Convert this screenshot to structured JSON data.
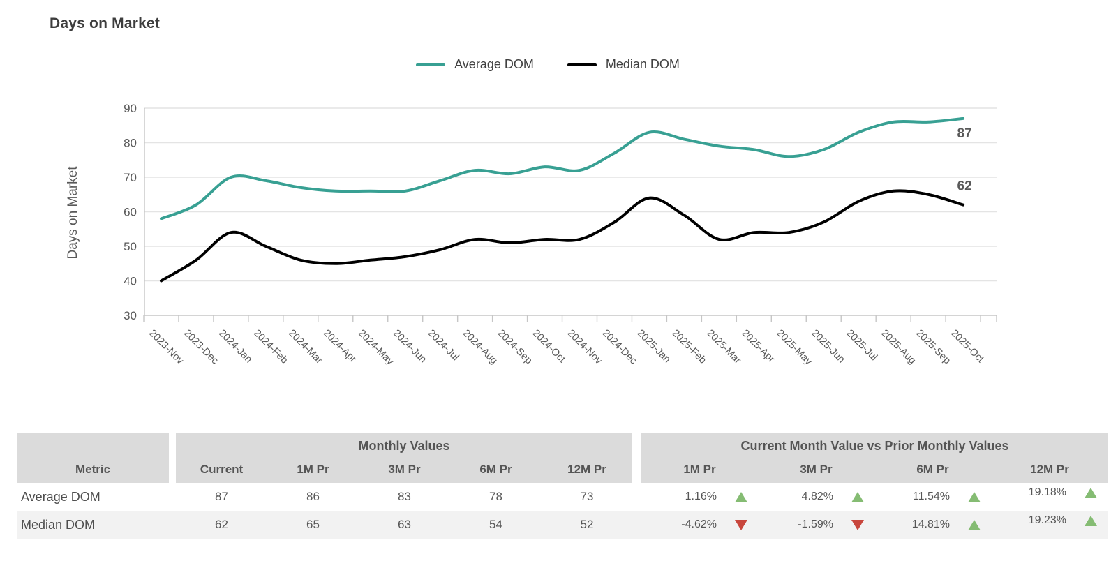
{
  "title": "Days on Market",
  "colors": {
    "average_line": "#38a093",
    "median_line": "#000000",
    "positive": "#85bc73",
    "negative": "#c8463c"
  },
  "legend": [
    {
      "label": "Average DOM",
      "color": "#38a093"
    },
    {
      "label": "Median DOM",
      "color": "#000000"
    }
  ],
  "chart_data": {
    "type": "line",
    "title": "Days on Market",
    "xlabel": "",
    "ylabel": "Days on Market",
    "ylim": [
      30,
      90
    ],
    "ytick_step": 10,
    "grid": true,
    "legend_position": "top",
    "x": [
      "2023-Nov",
      "2023-Dec",
      "2024-Jan",
      "2024-Feb",
      "2024-Mar",
      "2024-Apr",
      "2024-May",
      "2024-Jun",
      "2024-Jul",
      "2024-Aug",
      "2024-Sep",
      "2024-Oct",
      "2024-Nov",
      "2024-Dec",
      "2025-Jan",
      "2025-Feb",
      "2025-Mar",
      "2025-Apr",
      "2025-May",
      "2025-Jun",
      "2025-Jul",
      "2025-Aug",
      "2025-Sep",
      "2025-Oct"
    ],
    "series": [
      {
        "name": "Average DOM",
        "color": "#38a093",
        "values": [
          58,
          62,
          70,
          69,
          67,
          66,
          66,
          66,
          69,
          72,
          71,
          73,
          72,
          77,
          83,
          81,
          79,
          78,
          76,
          78,
          83,
          86,
          86,
          87
        ],
        "end_label": "87"
      },
      {
        "name": "Median DOM",
        "color": "#000000",
        "values": [
          40,
          46,
          54,
          50,
          46,
          45,
          46,
          47,
          49,
          52,
          51,
          52,
          52,
          57,
          64,
          59,
          52,
          54,
          54,
          57,
          63,
          66,
          65,
          62
        ],
        "end_label": "62"
      }
    ]
  },
  "table": {
    "metric_header": "Metric",
    "monthly_group": "Monthly Values",
    "comparison_group": "Current Month Value vs Prior Monthly Values",
    "monthly_cols": [
      "Current",
      "1M Pr",
      "3M Pr",
      "6M Pr",
      "12M Pr"
    ],
    "comparison_cols": [
      "1M Pr",
      "3M Pr",
      "6M Pr",
      "12M Pr"
    ],
    "rows": [
      {
        "metric": "Average DOM",
        "monthly": [
          "87",
          "86",
          "83",
          "78",
          "73"
        ],
        "comparison": [
          {
            "pct": "1.16%",
            "dir": "up"
          },
          {
            "pct": "4.82%",
            "dir": "up"
          },
          {
            "pct": "11.54%",
            "dir": "up"
          },
          {
            "pct": "19.18%",
            "dir": "up"
          }
        ]
      },
      {
        "metric": "Median DOM",
        "monthly": [
          "62",
          "65",
          "63",
          "54",
          "52"
        ],
        "comparison": [
          {
            "pct": "-4.62%",
            "dir": "down"
          },
          {
            "pct": "-1.59%",
            "dir": "down"
          },
          {
            "pct": "14.81%",
            "dir": "up"
          },
          {
            "pct": "19.23%",
            "dir": "up"
          }
        ]
      }
    ]
  }
}
